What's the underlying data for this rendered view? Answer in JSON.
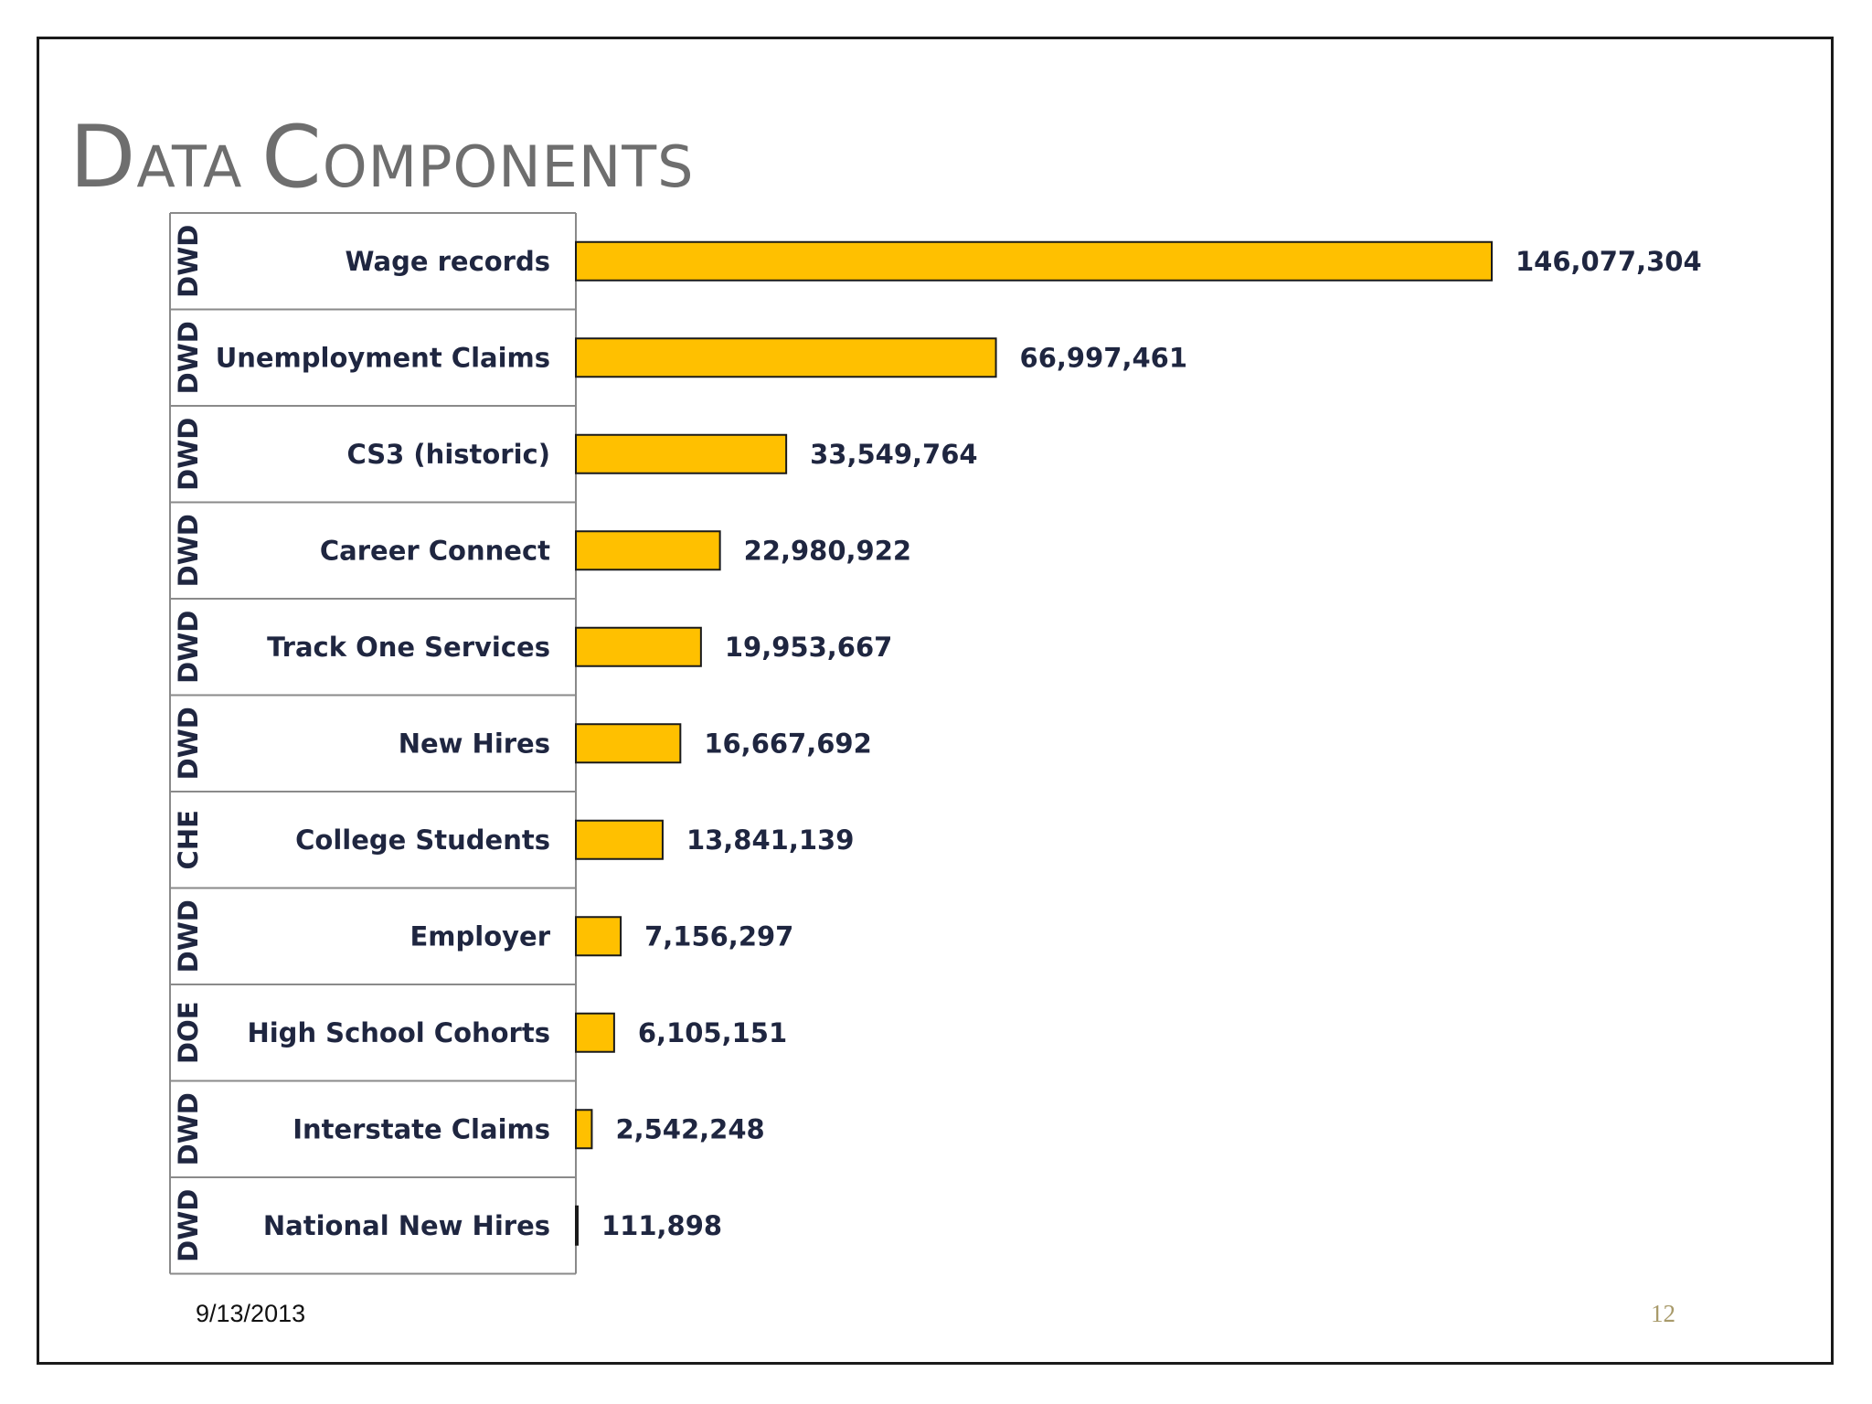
{
  "slide": {
    "title_first_cap": "D",
    "title_first_rest": "ATA ",
    "title_second_cap": "C",
    "title_second_rest": "OMPONENTS",
    "footer_date": "9/13/2013",
    "page_number": "12"
  },
  "chart_data": {
    "type": "bar",
    "orientation": "horizontal",
    "bar_color": "#FFC000",
    "bar_outline": "#1a1a1a",
    "categories": [
      "Wage records",
      "Unemployment Claims",
      "CS3 (historic)",
      "Career Connect",
      "Track One Services",
      "New Hires",
      "College Students",
      "Employer",
      "High School Cohorts",
      "Interstate Claims",
      "National New Hires"
    ],
    "groups": [
      "DWD",
      "DWD",
      "DWD",
      "DWD",
      "DWD",
      "DWD",
      "CHE",
      "DWD",
      "DOE",
      "DWD",
      "DWD"
    ],
    "values": [
      146077304,
      66997461,
      33549764,
      22980922,
      19953667,
      16667692,
      13841139,
      7156297,
      6105151,
      2542248,
      111898
    ],
    "value_labels": [
      "146,077,304",
      "66,997,461",
      "33,549,764",
      "22,980,922",
      "19,953,667",
      "16,667,692",
      "13,841,139",
      "7,156,297",
      "6,105,151",
      "2,542,248",
      "111,898"
    ],
    "xlim": [
      0,
      146077304
    ],
    "grid": false,
    "legend": "none"
  }
}
